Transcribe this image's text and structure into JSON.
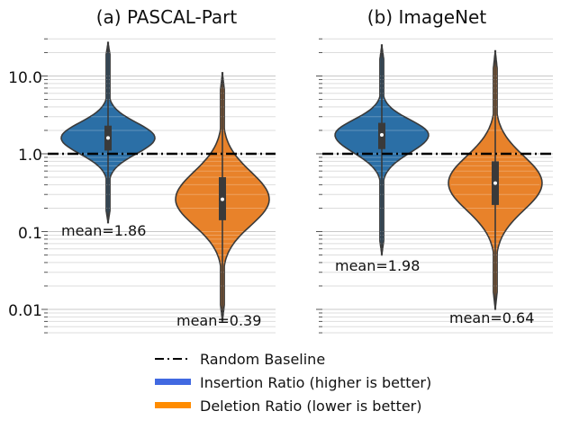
{
  "chart_data": [
    {
      "type": "violin",
      "title": "(a) PASCAL-Part",
      "yscale": "log",
      "ylim": [
        0.005,
        30
      ],
      "ytick_labels": [
        "10.0",
        "1.0",
        "0.1",
        "0.01"
      ],
      "ytick_values": [
        10,
        1,
        0.1,
        0.01
      ],
      "baseline": 1.0,
      "series": [
        {
          "name": "Insertion Ratio (higher is better)",
          "color": "#2b6fa6",
          "min": 0.13,
          "max": 27,
          "q1": 1.1,
          "median": 1.6,
          "q3": 2.3,
          "mean_label": "mean=1.86"
        },
        {
          "name": "Deletion Ratio (lower is better)",
          "color": "#e8822a",
          "min": 0.007,
          "max": 11,
          "q1": 0.14,
          "median": 0.26,
          "q3": 0.5,
          "mean_label": "mean=0.39"
        }
      ]
    },
    {
      "type": "violin",
      "title": "(b) ImageNet",
      "yscale": "log",
      "ylim": [
        0.005,
        30
      ],
      "baseline": 1.0,
      "series": [
        {
          "name": "Insertion Ratio (higher is better)",
          "color": "#2b6fa6",
          "min": 0.05,
          "max": 25,
          "q1": 1.15,
          "median": 1.75,
          "q3": 2.5,
          "mean_label": "mean=1.98"
        },
        {
          "name": "Deletion Ratio (lower is better)",
          "color": "#e8822a",
          "min": 0.01,
          "max": 21,
          "q1": 0.22,
          "median": 0.42,
          "q3": 0.8,
          "mean_label": "mean=0.64"
        }
      ]
    }
  ],
  "legend": {
    "placement": "bottom-center",
    "items": [
      {
        "label": "Random Baseline",
        "style": "dashdot",
        "color": "#000000"
      },
      {
        "label": "Insertion Ratio (higher is better)",
        "style": "bar",
        "color": "#4169e1"
      },
      {
        "label": "Deletion Ratio (lower is better)",
        "style": "bar",
        "color": "#ff8c00"
      }
    ]
  }
}
